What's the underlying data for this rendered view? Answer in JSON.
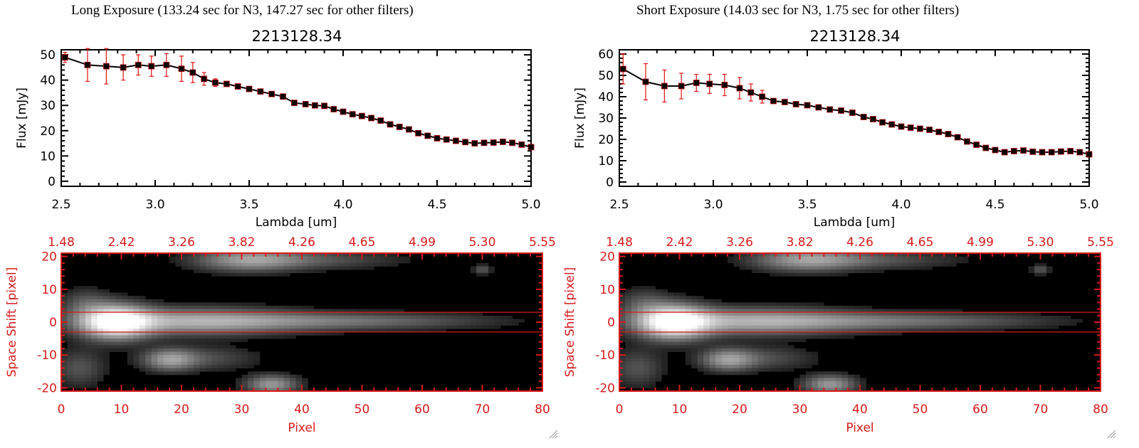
{
  "panels": [
    {
      "heading": "Long Exposure (133.24 sec for N3, 147.27 sec for other filters)",
      "spectrum": {
        "type": "line",
        "title": "2213128.34",
        "xlabel": "Lambda [um]",
        "ylabel": "Flux [mJy]",
        "xlim": [
          2.5,
          5.0
        ],
        "ylim": [
          -2,
          52
        ],
        "xticks": [
          "2.5",
          "3.0",
          "3.5",
          "4.0",
          "4.5",
          "5.0"
        ],
        "yticks": [
          "0",
          "10",
          "20",
          "30",
          "40",
          "50"
        ],
        "x": [
          2.52,
          2.64,
          2.74,
          2.83,
          2.91,
          2.98,
          3.06,
          3.14,
          3.2,
          3.26,
          3.32,
          3.38,
          3.44,
          3.5,
          3.56,
          3.62,
          3.68,
          3.74,
          3.8,
          3.85,
          3.9,
          3.95,
          4.0,
          4.05,
          4.1,
          4.15,
          4.2,
          4.25,
          4.3,
          4.35,
          4.4,
          4.45,
          4.5,
          4.55,
          4.6,
          4.65,
          4.7,
          4.75,
          4.8,
          4.85,
          4.9,
          4.95,
          5.0
        ],
        "y": [
          49,
          46,
          45.5,
          45,
          46,
          45.5,
          46,
          44.5,
          43,
          40.5,
          39,
          38.5,
          37.5,
          36.5,
          35.5,
          34.5,
          33.5,
          31,
          30.5,
          30,
          29.8,
          28.5,
          27.5,
          26.5,
          25.8,
          25,
          24,
          22.5,
          21.5,
          20.5,
          19,
          18,
          17,
          16.5,
          16,
          15.5,
          15,
          15.2,
          15.3,
          15.6,
          15.2,
          14.5,
          13.5
        ],
        "err": [
          2,
          6.5,
          7,
          5,
          4,
          4,
          4.5,
          5,
          4,
          2.5,
          1.5,
          1,
          1,
          1,
          1,
          1,
          1,
          1,
          1,
          1,
          1,
          1,
          1,
          1,
          1,
          1,
          1,
          1,
          1,
          1,
          1,
          1,
          1,
          1,
          1,
          1,
          1,
          1,
          1,
          1,
          1,
          1,
          1
        ]
      },
      "image": {
        "top_axis_ticks": [
          "1.48",
          "2.42",
          "3.26",
          "3.82",
          "4.26",
          "4.65",
          "4.99",
          "5.30",
          "5.55"
        ],
        "xlabel": "Pixel",
        "ylabel": "Space Shift [pixel]",
        "xlim": [
          0,
          80
        ],
        "ylim": [
          -21,
          21
        ],
        "xticks": [
          "0",
          "10",
          "20",
          "30",
          "40",
          "50",
          "60",
          "70",
          "80"
        ],
        "yticks": [
          "-20",
          "-10",
          "0",
          "10",
          "20"
        ],
        "aperture": [
          -3,
          3
        ]
      }
    },
    {
      "heading": "Short Exposure (14.03 sec for N3, 1.75 sec for other filters)",
      "spectrum": {
        "type": "line",
        "title": "2213128.34",
        "xlabel": "Lambda [um]",
        "ylabel": "Flux [mJy]",
        "xlim": [
          2.5,
          5.0
        ],
        "ylim": [
          -2,
          62
        ],
        "xticks": [
          "2.5",
          "3.0",
          "3.5",
          "4.0",
          "4.5",
          "5.0"
        ],
        "yticks": [
          "0",
          "10",
          "20",
          "30",
          "40",
          "50",
          "60"
        ],
        "x": [
          2.52,
          2.64,
          2.74,
          2.83,
          2.91,
          2.98,
          3.06,
          3.14,
          3.2,
          3.26,
          3.32,
          3.38,
          3.44,
          3.5,
          3.56,
          3.62,
          3.68,
          3.74,
          3.8,
          3.85,
          3.9,
          3.95,
          4.0,
          4.05,
          4.1,
          4.15,
          4.2,
          4.25,
          4.3,
          4.35,
          4.4,
          4.45,
          4.5,
          4.55,
          4.6,
          4.65,
          4.7,
          4.75,
          4.8,
          4.85,
          4.9,
          4.95,
          5.0
        ],
        "y": [
          53,
          47,
          45,
          45,
          46.5,
          46,
          45.5,
          44,
          42,
          40,
          38,
          37.5,
          36.5,
          36,
          35,
          34,
          33.5,
          32.5,
          30.5,
          29.5,
          28,
          27,
          26,
          25.5,
          25,
          24.5,
          23.5,
          22.5,
          21,
          19,
          17.5,
          16,
          15,
          14,
          14.5,
          14.8,
          14.2,
          14,
          14,
          14.3,
          14.5,
          14,
          13
        ],
        "err": [
          7,
          8.5,
          7.5,
          6,
          4,
          4.5,
          5,
          5,
          4,
          3,
          1,
          1,
          1,
          1,
          1,
          1,
          1,
          1,
          1,
          1,
          1,
          1,
          1,
          1,
          1,
          1,
          1,
          1,
          1,
          1,
          1,
          1,
          1,
          1,
          1,
          1,
          1,
          1,
          1,
          1,
          1,
          1,
          1
        ]
      },
      "image": {
        "top_axis_ticks": [
          "1.48",
          "2.42",
          "3.26",
          "3.82",
          "4.26",
          "4.65",
          "4.99",
          "5.30",
          "5.55"
        ],
        "xlabel": "Pixel",
        "ylabel": "Space Shift [pixel]",
        "xlim": [
          0,
          80
        ],
        "ylim": [
          -21,
          21
        ],
        "xticks": [
          "0",
          "10",
          "20",
          "30",
          "40",
          "50",
          "60",
          "70",
          "80"
        ],
        "yticks": [
          "-20",
          "-10",
          "0",
          "10",
          "20"
        ],
        "aperture": [
          -3,
          3
        ]
      }
    }
  ],
  "colors": {
    "axis": "#000000",
    "image_axis": "#d81a1a",
    "error_bar": "#e01010",
    "marker": "#000000",
    "marker_edge": "#c01010",
    "aperture_line": "#d81a1a",
    "image_bg": "#000000"
  }
}
